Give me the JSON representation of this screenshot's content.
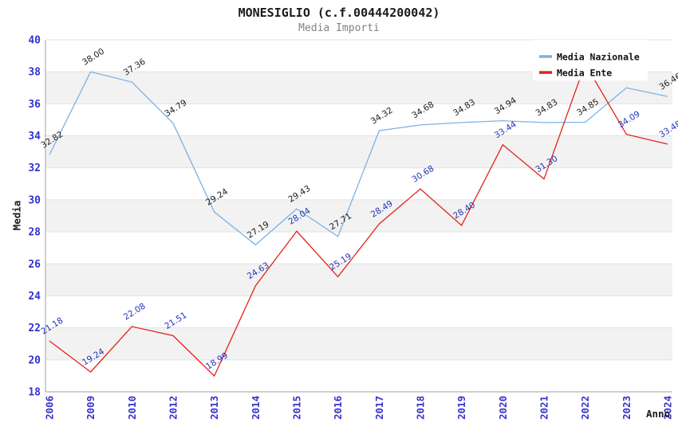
{
  "chart_data": {
    "type": "line",
    "title": "MONESIGLIO (c.f.00444200042)",
    "subtitle": "Media Importi",
    "xlabel": "Anno",
    "ylabel": "Media",
    "ylim": [
      18,
      40
    ],
    "ytick_step": 2,
    "grid": "horizontal-gridlines-with-alternating-bands",
    "legend_position": "top-right",
    "colors": {
      "band_fill": "#f2f2f2",
      "gridline": "#e2e2e2",
      "axis_line": "#a0a0a0",
      "tick_label": "#3333cc",
      "legend_text": "#111111",
      "title_text": "#1a1a1a",
      "subtitle_text": "#828282"
    },
    "categories": [
      "2006",
      "2009",
      "2010",
      "2012",
      "2013",
      "2014",
      "2015",
      "2016",
      "2017",
      "2018",
      "2019",
      "2020",
      "2021",
      "2022",
      "2023",
      "2024"
    ],
    "series": [
      {
        "name": "Media Nazionale",
        "color": "#7db1e4",
        "label_color": "#1a1a1a",
        "values": [
          32.82,
          38.0,
          37.36,
          34.79,
          29.24,
          27.19,
          29.43,
          27.71,
          34.32,
          34.68,
          34.83,
          34.94,
          34.83,
          34.85,
          37.0,
          36.46
        ],
        "labels": [
          "32.82",
          "38.00",
          "37.36",
          "34.79",
          "29.24",
          "27.19",
          "29.43",
          "27.71",
          "34.32",
          "34.68",
          "34.83",
          "34.94",
          "34.83",
          "34.85",
          null,
          "36.46"
        ]
      },
      {
        "name": "Media Ente",
        "color": "#e32219",
        "label_color": "#2233b3",
        "values": [
          21.18,
          19.24,
          22.08,
          21.51,
          18.99,
          24.63,
          28.04,
          25.19,
          28.49,
          30.68,
          28.4,
          33.44,
          31.3,
          38.5,
          34.09,
          33.48
        ],
        "labels": [
          "21.18",
          "19.24",
          "22.08",
          "21.51",
          "18.99",
          "24.63",
          "28.04",
          "25.19",
          "28.49",
          "30.68",
          "28.40",
          "33.44",
          "31.30",
          null,
          "34.09",
          "33.48"
        ]
      }
    ]
  }
}
